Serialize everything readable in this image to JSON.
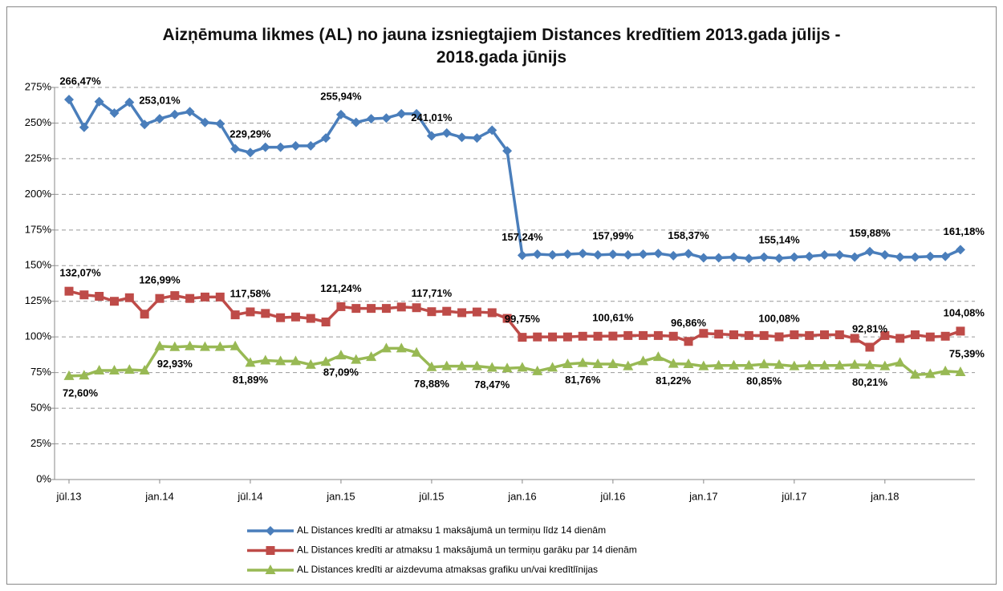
{
  "chart_data": {
    "type": "line",
    "title": "Aizņēmuma likmes (AL) no jauna izsniegtajiem Distances kredītiem 2013.gada jūlijs - 2018.gada jūnijs",
    "categories": [
      "jūl.13",
      null,
      null,
      null,
      null,
      null,
      "jan.14",
      null,
      null,
      null,
      null,
      null,
      "jūl.14",
      null,
      null,
      null,
      null,
      null,
      "jan.15",
      null,
      null,
      null,
      null,
      null,
      "jūl.15",
      null,
      null,
      null,
      null,
      null,
      "jan.16",
      null,
      null,
      null,
      null,
      null,
      "jūl.16",
      null,
      null,
      null,
      null,
      null,
      "jan.17",
      null,
      null,
      null,
      null,
      null,
      "jūl.17",
      null,
      null,
      null,
      null,
      null,
      "jan.18",
      null,
      null,
      null,
      null,
      null
    ],
    "ylim": [
      0,
      275
    ],
    "yticks": [
      {
        "value": 0,
        "label": "0%"
      },
      {
        "value": 25,
        "label": "25%"
      },
      {
        "value": 50,
        "label": "50%"
      },
      {
        "value": 75,
        "label": "75%"
      },
      {
        "value": 100,
        "label": "100%"
      },
      {
        "value": 125,
        "label": "125%"
      },
      {
        "value": 150,
        "label": "150%"
      },
      {
        "value": 175,
        "label": "175%"
      },
      {
        "value": 200,
        "label": "200%"
      },
      {
        "value": 225,
        "label": "225%"
      },
      {
        "value": 250,
        "label": "250%"
      },
      {
        "value": 275,
        "label": "275%"
      }
    ],
    "grid": true,
    "legend": "bottom",
    "series": [
      {
        "name": "AL Distances kredīti ar atmaksu 1 maksājumā un termiņu līdz 14 dienām",
        "color": "#4a7ebb",
        "marker": "diamond",
        "values": [
          266.47,
          247,
          265,
          257,
          264.5,
          249,
          253.01,
          256,
          258,
          250.5,
          249.5,
          232,
          229.29,
          233,
          233,
          234,
          234,
          239.5,
          255.94,
          250.5,
          253,
          253.5,
          256.5,
          256.5,
          241.01,
          243,
          240,
          239.5,
          245,
          230.5,
          157.24,
          158,
          157.5,
          158,
          158.5,
          157.5,
          157.99,
          157.5,
          158,
          158.5,
          157,
          158.37,
          155.5,
          155.5,
          156,
          155,
          156,
          155.14,
          156,
          156.5,
          157.5,
          157.5,
          156,
          159.88,
          157.5,
          156,
          156,
          156.5,
          156.5,
          161.18
        ],
        "value_labels": [
          "266,47%",
          null,
          null,
          null,
          null,
          null,
          "253,01%",
          null,
          null,
          null,
          null,
          null,
          "229,29%",
          null,
          null,
          null,
          null,
          null,
          "255,94%",
          null,
          null,
          null,
          null,
          null,
          "241,01%",
          null,
          null,
          null,
          null,
          null,
          "157,24%",
          null,
          null,
          null,
          null,
          null,
          "157,99%",
          null,
          null,
          null,
          null,
          "158,37%",
          null,
          null,
          null,
          null,
          null,
          "155,14%",
          null,
          null,
          null,
          null,
          null,
          "159,88%",
          null,
          null,
          null,
          null,
          null,
          "161,18%"
        ]
      },
      {
        "name": "AL Distances kredīti ar atmaksu 1 maksājumā un termiņu garāku par 14 dienām",
        "color": "#be4b48",
        "marker": "square",
        "values": [
          132.07,
          129.5,
          128.5,
          125,
          127.5,
          116,
          126.99,
          129,
          127,
          128,
          128,
          115.5,
          117.58,
          116.5,
          113.5,
          114,
          113,
          110.5,
          121.24,
          120,
          120,
          120,
          121,
          120.5,
          117.71,
          118,
          117,
          117.5,
          117,
          113,
          99.75,
          100,
          100,
          100,
          100.5,
          100.5,
          100.61,
          101,
          101,
          101,
          100.5,
          96.86,
          102.5,
          102,
          101.5,
          101,
          101,
          100.08,
          101.5,
          101,
          101.5,
          101.5,
          99,
          92.81,
          101,
          99,
          101.5,
          100,
          100.5,
          104.08
        ],
        "value_labels": [
          "132,07%",
          null,
          null,
          null,
          null,
          null,
          "126,99%",
          null,
          null,
          null,
          null,
          null,
          "117,58%",
          null,
          null,
          null,
          null,
          null,
          "121,24%",
          null,
          null,
          null,
          null,
          null,
          "117,71%",
          null,
          null,
          null,
          null,
          null,
          "99,75%",
          null,
          null,
          null,
          null,
          null,
          "100,61%",
          null,
          null,
          null,
          null,
          "96,86%",
          null,
          null,
          null,
          null,
          null,
          "100,08%",
          null,
          null,
          null,
          null,
          null,
          "92,81%",
          null,
          null,
          null,
          null,
          null,
          "104,08%"
        ]
      },
      {
        "name": "AL Distances kredīti ar aizdevuma atmaksas grafiku un/vai kredītlīnijas",
        "color": "#98b954",
        "marker": "triangle",
        "values": [
          72.6,
          73,
          76.5,
          76.5,
          77,
          76.5,
          93.5,
          92.93,
          93.5,
          93,
          93,
          93.5,
          81.89,
          83.5,
          83,
          83,
          80.5,
          82.5,
          87.09,
          84,
          86,
          92,
          92,
          89,
          78.88,
          79.5,
          79.5,
          79.5,
          78.47,
          78,
          78.5,
          76,
          78.5,
          81,
          81.76,
          81,
          81,
          79.5,
          83,
          86,
          81.22,
          81,
          79.5,
          80,
          80,
          80,
          80.85,
          80.5,
          79.5,
          80,
          80,
          80,
          80.5,
          80.21,
          79.5,
          82,
          73.5,
          74,
          76,
          75.39
        ],
        "value_labels": [
          "72,60%",
          null,
          null,
          null,
          null,
          null,
          null,
          "92,93%",
          null,
          null,
          null,
          null,
          "81,89%",
          null,
          null,
          null,
          null,
          null,
          "87,09%",
          null,
          null,
          null,
          null,
          null,
          "78,88%",
          null,
          null,
          null,
          "78,47%",
          null,
          null,
          null,
          null,
          null,
          "81,76%",
          null,
          null,
          null,
          null,
          null,
          "81,22%",
          null,
          null,
          null,
          null,
          null,
          "80,85%",
          null,
          null,
          null,
          null,
          null,
          null,
          "80,21%",
          null,
          null,
          null,
          null,
          null,
          "75,39%"
        ]
      }
    ]
  }
}
